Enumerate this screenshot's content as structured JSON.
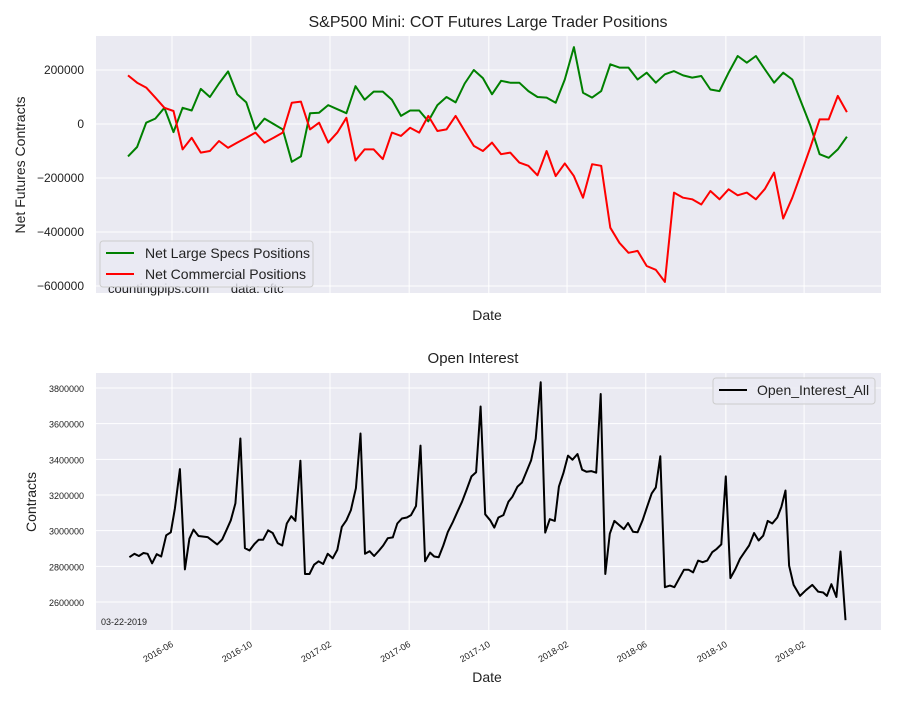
{
  "chart_data": [
    {
      "type": "line",
      "title": "S&P500 Mini: COT Futures Large Trader Positions",
      "xlabel": "Date",
      "ylabel": "Net Futures Contracts",
      "x_unit": "weeks since first report (weekly data, 2-week sampling)",
      "xlim": [
        -7.03,
        165.5
      ],
      "ylim": [
        -626000,
        326000
      ],
      "yticks": [
        -600000,
        -400000,
        -200000,
        0,
        200000
      ],
      "ytick_labels": [
        "−600000",
        "−400000",
        "−200000",
        "0",
        "200000"
      ],
      "xtick_weeks": [
        9.67,
        27.0,
        44.4,
        61.8,
        79.3,
        96.5,
        113.8,
        131.4,
        148.6
      ],
      "grid": true,
      "legend_position": "lower-left",
      "annotation": "countingpips.com      data: cftc",
      "x_step_weeks": 2,
      "series": [
        {
          "name": "Net Large Specs Positions",
          "color": "#008000",
          "values": [
            -120000,
            -85000,
            5000,
            20000,
            60000,
            -30000,
            60000,
            50000,
            130000,
            100000,
            150000,
            195000,
            110000,
            80000,
            -20000,
            20000,
            0,
            -20000,
            -140000,
            -120000,
            40000,
            42000,
            70000,
            55000,
            40000,
            140000,
            90000,
            120000,
            120000,
            90000,
            30000,
            50000,
            50000,
            10000,
            70000,
            100000,
            80000,
            150000,
            200000,
            170000,
            110000,
            160000,
            153000,
            153000,
            122000,
            100000,
            98000,
            79000,
            165000,
            285000,
            116000,
            98000,
            122000,
            221000,
            209000,
            209000,
            165000,
            190000,
            153000,
            184000,
            196000,
            180000,
            172000,
            178000,
            128000,
            122000,
            190000,
            252000,
            227000,
            252000,
            202000,
            153000,
            190000,
            165000,
            79000,
            -7000,
            -112000,
            -125000,
            -94000,
            -47000
          ]
        },
        {
          "name": "Net Commercial Positions",
          "color": "#ff0000",
          "values": [
            180000,
            153000,
            135000,
            98000,
            60000,
            48000,
            -94000,
            -51000,
            -106000,
            -100000,
            -63000,
            -88000,
            -69000,
            -51000,
            -32000,
            -69000,
            -51000,
            -32000,
            79000,
            83000,
            -20000,
            5000,
            -69000,
            -32000,
            23000,
            -135000,
            -94000,
            -94000,
            -130000,
            -32000,
            -44000,
            -14000,
            -32000,
            30000,
            -26000,
            -20000,
            30000,
            -26000,
            -81000,
            -100000,
            -69000,
            -112000,
            -106000,
            -143000,
            -155000,
            -190000,
            -100000,
            -193000,
            -146000,
            -193000,
            -273000,
            -149000,
            -155000,
            -384000,
            -440000,
            -477000,
            -470000,
            -526000,
            -540000,
            -585000,
            -254000,
            -273000,
            -279000,
            -298000,
            -248000,
            -279000,
            -242000,
            -264000,
            -254000,
            -279000,
            -240000,
            -180000,
            -350000,
            -273000,
            -180000,
            -85000,
            17000,
            17000,
            104000,
            44000
          ]
        }
      ]
    },
    {
      "type": "line",
      "title": "Open Interest",
      "xlabel": "Date",
      "ylabel": "Contracts",
      "x_unit": "weeks since first report",
      "xlim": [
        -7.03,
        165.5
      ],
      "ylim": [
        2443000,
        3884000
      ],
      "yticks": [
        2600000,
        2800000,
        3000000,
        3200000,
        3400000,
        3600000,
        3800000
      ],
      "ytick_labels": [
        "2600000",
        "2800000",
        "3000000",
        "3200000",
        "3400000",
        "3600000",
        "3800000"
      ],
      "xtick_weeks": [
        9.67,
        27.0,
        44.4,
        61.8,
        79.3,
        96.5,
        113.8,
        131.4,
        148.6
      ],
      "xtick_labels": [
        "2016-06",
        "2016-10",
        "2017-02",
        "2017-06",
        "2017-10",
        "2018-02",
        "2018-06",
        "2018-10",
        "2019-02"
      ],
      "grid": true,
      "legend_position": "top-right",
      "annotation": "03-22-2019",
      "series": [
        {
          "name": "Open_Interest_All",
          "color": "#000000",
          "points": [
            [
              0.3,
              2851000
            ],
            [
              1.4,
              2870000
            ],
            [
              2.4,
              2858000
            ],
            [
              3.4,
              2875000
            ],
            [
              4.3,
              2870000
            ],
            [
              5.3,
              2817000
            ],
            [
              6.3,
              2868000
            ],
            [
              7.3,
              2855000
            ],
            [
              8.4,
              2974000
            ],
            [
              9.4,
              2991000
            ],
            [
              10.3,
              3125000
            ],
            [
              11.4,
              3345000
            ],
            [
              12.5,
              2783000
            ],
            [
              13.5,
              2955000
            ],
            [
              14.4,
              3006000
            ],
            [
              15.5,
              2970000
            ],
            [
              17.5,
              2964000
            ],
            [
              19.6,
              2923000
            ],
            [
              20.7,
              2951000
            ],
            [
              21.7,
              3006000
            ],
            [
              22.6,
              3058000
            ],
            [
              23.6,
              3153000
            ],
            [
              24.7,
              3517000
            ],
            [
              25.7,
              2902000
            ],
            [
              26.7,
              2889000
            ],
            [
              27.8,
              2926000
            ],
            [
              28.7,
              2949000
            ],
            [
              29.7,
              2949000
            ],
            [
              30.8,
              3002000
            ],
            [
              31.8,
              2987000
            ],
            [
              32.9,
              2930000
            ],
            [
              33.9,
              2917000
            ],
            [
              34.9,
              3040000
            ],
            [
              35.9,
              3081000
            ],
            [
              36.8,
              3055000
            ],
            [
              37.9,
              3392000
            ],
            [
              38.9,
              2757000
            ],
            [
              39.9,
              2757000
            ],
            [
              40.9,
              2809000
            ],
            [
              41.9,
              2828000
            ],
            [
              42.9,
              2813000
            ],
            [
              43.9,
              2870000
            ],
            [
              45.0,
              2845000
            ],
            [
              46.0,
              2892000
            ],
            [
              47.0,
              3021000
            ],
            [
              48.0,
              3058000
            ],
            [
              49.0,
              3115000
            ],
            [
              50.1,
              3238000
            ],
            [
              51.1,
              3545000
            ],
            [
              52.1,
              2870000
            ],
            [
              53.1,
              2885000
            ],
            [
              54.1,
              2858000
            ],
            [
              55.2,
              2889000
            ],
            [
              56.1,
              2917000
            ],
            [
              57.1,
              2958000
            ],
            [
              58.2,
              2962000
            ],
            [
              59.2,
              3040000
            ],
            [
              60.2,
              3068000
            ],
            [
              61.3,
              3074000
            ],
            [
              62.2,
              3087000
            ],
            [
              63.3,
              3138000
            ],
            [
              64.3,
              3477000
            ],
            [
              65.3,
              2828000
            ],
            [
              66.4,
              2877000
            ],
            [
              67.3,
              2855000
            ],
            [
              68.3,
              2851000
            ],
            [
              69.3,
              2917000
            ],
            [
              70.3,
              2992000
            ],
            [
              71.4,
              3049000
            ],
            [
              72.4,
              3106000
            ],
            [
              73.4,
              3162000
            ],
            [
              74.4,
              3228000
            ],
            [
              75.5,
              3304000
            ],
            [
              76.5,
              3328000
            ],
            [
              77.5,
              3696000
            ],
            [
              78.5,
              3092000
            ],
            [
              79.6,
              3058000
            ],
            [
              80.5,
              3017000
            ],
            [
              81.4,
              3074000
            ],
            [
              82.5,
              3087000
            ],
            [
              83.6,
              3162000
            ],
            [
              84.5,
              3191000
            ],
            [
              85.6,
              3247000
            ],
            [
              86.6,
              3270000
            ],
            [
              87.6,
              3332000
            ],
            [
              88.6,
              3394000
            ],
            [
              89.6,
              3515000
            ],
            [
              90.7,
              3832000
            ],
            [
              91.7,
              2989000
            ],
            [
              92.7,
              3064000
            ],
            [
              93.8,
              3055000
            ],
            [
              94.7,
              3247000
            ],
            [
              95.7,
              3323000
            ],
            [
              96.7,
              3421000
            ],
            [
              97.7,
              3398000
            ],
            [
              98.8,
              3430000
            ],
            [
              99.8,
              3342000
            ],
            [
              100.8,
              3330000
            ],
            [
              101.8,
              3334000
            ],
            [
              102.9,
              3325000
            ],
            [
              103.9,
              3766000
            ],
            [
              104.9,
              2757000
            ],
            [
              105.9,
              2983000
            ],
            [
              106.9,
              3055000
            ],
            [
              108.0,
              3030000
            ],
            [
              109.0,
              3009000
            ],
            [
              109.9,
              3043000
            ],
            [
              111.0,
              2994000
            ],
            [
              112.0,
              2991000
            ],
            [
              113.1,
              3058000
            ],
            [
              114.1,
              3134000
            ],
            [
              115.1,
              3209000
            ],
            [
              116.0,
              3242000
            ],
            [
              117.0,
              3417000
            ],
            [
              118.0,
              2683000
            ],
            [
              119.1,
              2692000
            ],
            [
              120.1,
              2683000
            ],
            [
              121.1,
              2730000
            ],
            [
              122.2,
              2781000
            ],
            [
              123.2,
              2781000
            ],
            [
              124.2,
              2766000
            ],
            [
              125.3,
              2832000
            ],
            [
              126.3,
              2823000
            ],
            [
              127.3,
              2832000
            ],
            [
              128.4,
              2879000
            ],
            [
              129.4,
              2898000
            ],
            [
              130.4,
              2923000
            ],
            [
              131.4,
              3304000
            ],
            [
              132.4,
              2734000
            ],
            [
              133.5,
              2785000
            ],
            [
              134.5,
              2842000
            ],
            [
              135.5,
              2879000
            ],
            [
              136.5,
              2917000
            ],
            [
              137.6,
              2987000
            ],
            [
              138.6,
              2945000
            ],
            [
              139.6,
              2972000
            ],
            [
              140.6,
              3055000
            ],
            [
              141.6,
              3040000
            ],
            [
              142.7,
              3074000
            ],
            [
              143.6,
              3134000
            ],
            [
              144.5,
              3225000
            ],
            [
              145.3,
              2804000
            ],
            [
              146.3,
              2696000
            ],
            [
              147.7,
              2634000
            ],
            [
              149.0,
              2666000
            ],
            [
              150.4,
              2696000
            ],
            [
              151.7,
              2658000
            ],
            [
              152.8,
              2653000
            ],
            [
              153.6,
              2634000
            ],
            [
              154.6,
              2700000
            ],
            [
              155.7,
              2628000
            ],
            [
              156.6,
              2883000
            ],
            [
              157.7,
              2498000
            ]
          ]
        }
      ]
    }
  ]
}
